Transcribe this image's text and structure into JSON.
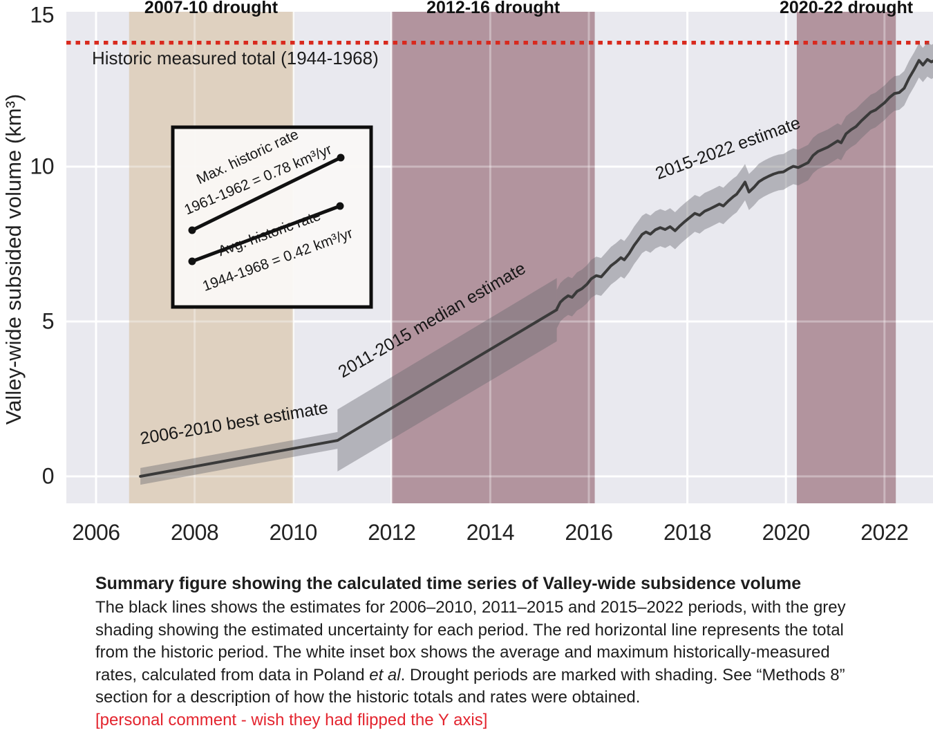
{
  "chart_data": {
    "type": "line",
    "title": "",
    "xlabel": "",
    "ylabel": "Valley-wide subsided volume (km³)",
    "xlim": [
      2005.4,
      2023.0
    ],
    "ylim": [
      -0.87,
      15.0
    ],
    "grid": "on",
    "background_color": "#e9e9ef",
    "gridline_color": "#ffffff",
    "line_color": "#3a3a3a",
    "band_color": "rgba(104,104,112,0.42)",
    "x_axis": {
      "ticks": [
        2006,
        2008,
        2010,
        2012,
        2014,
        2016,
        2018,
        2020,
        2022
      ]
    },
    "y_axis": {
      "title": "Valley-wide subsided volume (km³)",
      "ticks": [
        0,
        5,
        10,
        15
      ]
    },
    "drought_bands": [
      {
        "label": "2007-10 drought",
        "start": 2006.67,
        "end": 2010.0,
        "color": "#dfd1c0"
      },
      {
        "label": "2012-16 drought",
        "start": 2012.0,
        "end": 2016.12,
        "color": "#b2949e"
      },
      {
        "label": "2020-22 drought",
        "start": 2020.22,
        "end": 2022.23,
        "color": "#b2949e"
      }
    ],
    "reference_line": {
      "label": "Historic measured total (1944-1968)",
      "value": 14.0,
      "color": "#d8291d",
      "style": "dotted"
    },
    "series": [
      {
        "name": "2006-2010 best estimate",
        "band_halfwidth": [
          0.27,
          0.27
        ],
        "points": [
          [
            2006.9,
            0.0
          ],
          [
            2010.9,
            1.16
          ]
        ]
      },
      {
        "name": "2011-2015 median estimate",
        "band_halfwidth": [
          1.0,
          1.02
        ],
        "points": [
          [
            2010.9,
            1.16
          ],
          [
            2015.35,
            5.38
          ]
        ]
      },
      {
        "name": "2015-2022 estimate",
        "band_halfwidth": [
          0.62,
          0.55
        ],
        "points": [
          [
            2015.35,
            5.4
          ],
          [
            2015.42,
            5.62
          ],
          [
            2015.5,
            5.74
          ],
          [
            2015.58,
            5.83
          ],
          [
            2015.66,
            5.78
          ],
          [
            2015.76,
            5.97
          ],
          [
            2015.86,
            6.06
          ],
          [
            2015.96,
            6.2
          ],
          [
            2016.05,
            6.38
          ],
          [
            2016.15,
            6.48
          ],
          [
            2016.25,
            6.44
          ],
          [
            2016.35,
            6.62
          ],
          [
            2016.45,
            6.8
          ],
          [
            2016.55,
            6.92
          ],
          [
            2016.65,
            7.06
          ],
          [
            2016.72,
            6.99
          ],
          [
            2016.82,
            7.2
          ],
          [
            2016.92,
            7.46
          ],
          [
            2017.0,
            7.63
          ],
          [
            2017.08,
            7.81
          ],
          [
            2017.16,
            7.89
          ],
          [
            2017.25,
            7.82
          ],
          [
            2017.35,
            7.96
          ],
          [
            2017.45,
            8.03
          ],
          [
            2017.55,
            7.97
          ],
          [
            2017.65,
            8.06
          ],
          [
            2017.75,
            7.93
          ],
          [
            2017.85,
            8.09
          ],
          [
            2017.95,
            8.23
          ],
          [
            2018.05,
            8.36
          ],
          [
            2018.15,
            8.49
          ],
          [
            2018.25,
            8.43
          ],
          [
            2018.35,
            8.56
          ],
          [
            2018.45,
            8.63
          ],
          [
            2018.55,
            8.71
          ],
          [
            2018.65,
            8.79
          ],
          [
            2018.73,
            8.73
          ],
          [
            2018.83,
            8.89
          ],
          [
            2018.93,
            9.03
          ],
          [
            2019.0,
            9.11
          ],
          [
            2019.1,
            9.33
          ],
          [
            2019.17,
            9.5
          ],
          [
            2019.25,
            9.18
          ],
          [
            2019.35,
            9.33
          ],
          [
            2019.45,
            9.51
          ],
          [
            2019.55,
            9.61
          ],
          [
            2019.65,
            9.69
          ],
          [
            2019.75,
            9.76
          ],
          [
            2019.85,
            9.81
          ],
          [
            2019.95,
            9.83
          ],
          [
            2020.05,
            9.93
          ],
          [
            2020.15,
            10.01
          ],
          [
            2020.25,
            9.97
          ],
          [
            2020.35,
            10.05
          ],
          [
            2020.45,
            10.13
          ],
          [
            2020.55,
            10.36
          ],
          [
            2020.65,
            10.49
          ],
          [
            2020.75,
            10.56
          ],
          [
            2020.85,
            10.63
          ],
          [
            2020.95,
            10.73
          ],
          [
            2021.05,
            10.83
          ],
          [
            2021.12,
            10.77
          ],
          [
            2021.22,
            11.06
          ],
          [
            2021.32,
            11.19
          ],
          [
            2021.42,
            11.29
          ],
          [
            2021.52,
            11.46
          ],
          [
            2021.62,
            11.61
          ],
          [
            2021.72,
            11.76
          ],
          [
            2021.82,
            11.83
          ],
          [
            2021.92,
            11.96
          ],
          [
            2022.0,
            12.06
          ],
          [
            2022.1,
            12.23
          ],
          [
            2022.2,
            12.36
          ],
          [
            2022.3,
            12.39
          ],
          [
            2022.4,
            12.53
          ],
          [
            2022.5,
            12.86
          ],
          [
            2022.6,
            13.13
          ],
          [
            2022.7,
            13.43
          ],
          [
            2022.78,
            13.28
          ],
          [
            2022.87,
            13.46
          ],
          [
            2022.95,
            13.38
          ],
          [
            2023.0,
            13.42
          ]
        ]
      }
    ],
    "inset": {
      "lines": [
        {
          "label_1": "Max. historic rate",
          "label_2": "1961-1962 = 0.78 km³/yr",
          "rate_km3_per_yr": 0.78
        },
        {
          "label_1": "Avg. historic rate",
          "label_2": "1944-1968 = 0.42 km³/yr",
          "rate_km3_per_yr": 0.42
        }
      ]
    }
  },
  "caption": {
    "title": "Summary figure showing the calculated time series of Valley-wide subsidence volume",
    "body_segments": [
      {
        "text": "The black lines shows the estimates for 2006–2010, 2011–2015 and 2015–2022 periods, with the grey shading showing the estimated uncertainty for each period. The red horizontal line represents the total from the historic period. The white inset box shows the average and maximum historically-measured rates, calculated from data in Poland ",
        "style": "normal"
      },
      {
        "text": "et al",
        "style": "italic"
      },
      {
        "text": ". Drought periods are marked with shading. See “Methods 8” section for a description of how the historic totals and rates were obtained.",
        "style": "normal"
      }
    ],
    "comment": "[personal comment - wish they had flipped the Y axis]",
    "comment_color": "#e3242e"
  }
}
